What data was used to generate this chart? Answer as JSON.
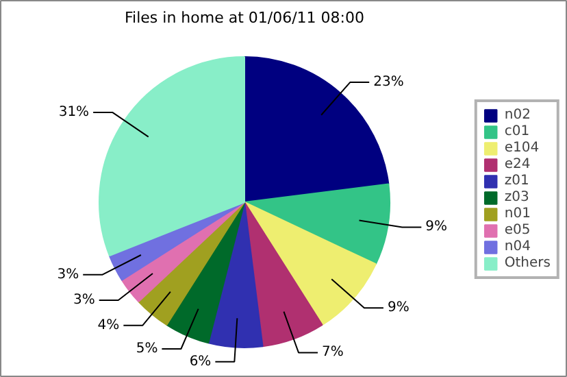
{
  "chart_data": {
    "type": "pie",
    "title": "Files in home at 01/06/11 08:00",
    "categories": [
      "n02",
      "c01",
      "e104",
      "e24",
      "z01",
      "z03",
      "n01",
      "e05",
      "n04",
      "Others"
    ],
    "values": [
      23,
      9,
      9,
      7,
      6,
      5,
      4,
      3,
      3,
      31
    ],
    "colors": [
      "#000080",
      "#33c487",
      "#eeee70",
      "#b03070",
      "#3030b0",
      "#006a2a",
      "#a0a020",
      "#e070b0",
      "#7070e0",
      "#88eec8"
    ],
    "value_labels": [
      "23%",
      "9%",
      "9%",
      "7%",
      "6%",
      "5%",
      "4%",
      "3%",
      "3%",
      "31%"
    ],
    "legend": "right"
  }
}
